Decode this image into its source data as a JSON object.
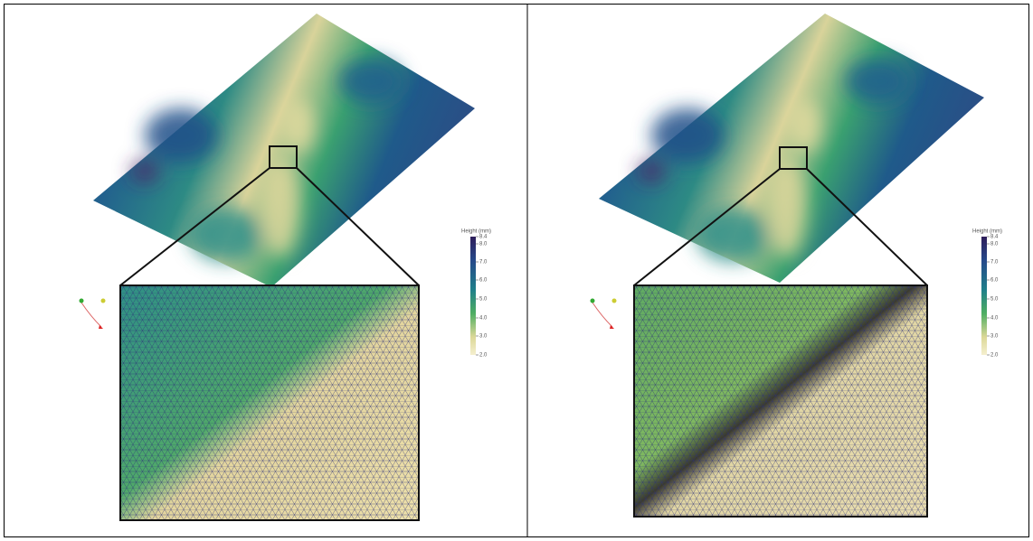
{
  "panels": [
    {
      "colorbar": {
        "title": "Height (mm)",
        "ticks": [
          "8.4",
          "8.0",
          "7.0",
          "6.0",
          "5.0",
          "4.0",
          "3.0",
          "2.0"
        ]
      }
    },
    {
      "colorbar": {
        "title": "Height (mm)",
        "ticks": [
          "8.4",
          "8.0",
          "7.0",
          "6.0",
          "5.0",
          "4.0",
          "3.0",
          "2.0"
        ]
      }
    }
  ]
}
